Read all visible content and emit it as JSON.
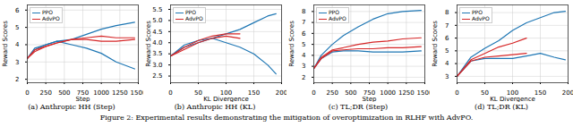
{
  "chart_data": [
    {
      "type": "line",
      "title": "(a) Anthropic HH (Step)",
      "xlabel": "Step",
      "ylabel": "Reward Scores",
      "x": [
        0,
        100,
        250,
        400,
        600,
        800,
        1000,
        1200,
        1450
      ],
      "series": [
        {
          "name": "PPO",
          "color": "#1f77b4",
          "values": [
            3.2,
            3.8,
            4.0,
            4.2,
            4.3,
            4.6,
            4.9,
            5.1,
            5.3
          ]
        },
        {
          "name": "PPO",
          "color": "#1f77b4",
          "values": [
            3.2,
            3.7,
            4.0,
            4.2,
            4.0,
            3.8,
            3.5,
            3.0,
            2.6
          ]
        },
        {
          "name": "AdvPO",
          "color": "#d62728",
          "values": [
            3.2,
            3.7,
            3.9,
            4.1,
            4.3,
            4.4,
            4.5,
            4.4,
            4.4
          ]
        },
        {
          "name": "AdvPO",
          "color": "#d62728",
          "values": [
            3.2,
            3.6,
            3.9,
            4.1,
            4.3,
            4.3,
            4.2,
            4.2,
            4.3
          ]
        }
      ],
      "xlim": [
        0,
        1500
      ],
      "xticks": [
        0,
        250,
        500,
        750,
        1000,
        1250,
        1500
      ],
      "ylim": [
        1.8,
        6.3
      ],
      "yticks": [
        2,
        3,
        4,
        5,
        6
      ],
      "grid": true,
      "legend": "upper left"
    },
    {
      "type": "line",
      "title": "(b) Anthropic HH (KL)",
      "xlabel": "KL Divergence",
      "ylabel": "Reward Scores",
      "x": [
        0,
        25,
        50,
        75,
        100,
        125,
        150,
        175,
        190
      ],
      "series": [
        {
          "name": "PPO",
          "color": "#1f77b4",
          "values": [
            3.4,
            3.8,
            4.0,
            4.2,
            4.4,
            4.6,
            4.9,
            5.2,
            5.3
          ]
        },
        {
          "name": "PPO",
          "color": "#1f77b4",
          "values": [
            3.4,
            3.9,
            4.1,
            4.2,
            4.0,
            3.8,
            3.5,
            3.0,
            2.6
          ]
        },
        {
          "name": "AdvPO",
          "color": "#d62728",
          "values": [
            3.4,
            3.8,
            4.1,
            4.3,
            4.4,
            4.4,
            null,
            null,
            null
          ]
        },
        {
          "name": "AdvPO",
          "color": "#d62728",
          "values": [
            3.4,
            3.7,
            4.0,
            4.2,
            4.3,
            4.2,
            null,
            null,
            null
          ]
        }
      ],
      "xlim": [
        0,
        200
      ],
      "xticks": [
        0,
        50,
        100,
        150,
        200
      ],
      "ylim": [
        2.2,
        5.7
      ],
      "yticks": [
        2.5,
        {
          "value": 3,
          "label": "3.0"
        },
        3.5,
        {
          "value": 4,
          "label": "4.0"
        },
        4.5,
        {
          "value": 5,
          "label": "5.0"
        },
        5.5
      ],
      "grid": true,
      "legend": "upper left"
    },
    {
      "type": "line",
      "title": "(c) TL;DR (Step)",
      "xlabel": "Step",
      "ylabel": "Reward Scores",
      "x": [
        0,
        100,
        250,
        400,
        600,
        800,
        1000,
        1200,
        1450
      ],
      "series": [
        {
          "name": "PPO",
          "color": "#1f77b4",
          "values": [
            2.8,
            4.0,
            5.0,
            5.8,
            6.6,
            7.3,
            7.8,
            8.0,
            8.1
          ]
        },
        {
          "name": "PPO",
          "color": "#1f77b4",
          "values": [
            2.8,
            3.7,
            4.3,
            4.4,
            4.4,
            4.3,
            4.3,
            4.3,
            4.4
          ]
        },
        {
          "name": "AdvPO",
          "color": "#d62728",
          "values": [
            2.8,
            3.8,
            4.5,
            4.7,
            5.0,
            5.2,
            5.3,
            5.5,
            5.6
          ]
        },
        {
          "name": "AdvPO",
          "color": "#d62728",
          "values": [
            2.8,
            3.7,
            4.4,
            4.5,
            4.6,
            4.6,
            4.7,
            4.7,
            4.8
          ]
        }
      ],
      "xlim": [
        0,
        1500
      ],
      "xticks": [
        0,
        250,
        500,
        750,
        1000,
        1250,
        1500
      ],
      "ylim": [
        1.5,
        8.6
      ],
      "yticks": [
        2,
        3,
        4,
        5,
        6,
        7,
        8
      ],
      "grid": true,
      "legend": "upper left"
    },
    {
      "type": "line",
      "title": "(d) TL;DR (KL)",
      "xlabel": "KL Divergence",
      "ylabel": "Reward Scores",
      "x": [
        0,
        25,
        50,
        75,
        100,
        125,
        150,
        175,
        195
      ],
      "series": [
        {
          "name": "PPO",
          "color": "#1f77b4",
          "values": [
            3.0,
            4.5,
            5.2,
            5.8,
            6.6,
            7.2,
            7.6,
            8.0,
            8.1
          ]
        },
        {
          "name": "PPO",
          "color": "#1f77b4",
          "values": [
            3.0,
            4.2,
            4.4,
            4.4,
            4.4,
            4.6,
            4.8,
            4.5,
            4.3
          ]
        },
        {
          "name": "AdvPO",
          "color": "#d62728",
          "values": [
            3.0,
            4.3,
            4.8,
            5.3,
            5.6,
            6.0,
            null,
            null,
            null
          ]
        },
        {
          "name": "AdvPO",
          "color": "#d62728",
          "values": [
            3.0,
            4.2,
            4.5,
            4.6,
            4.7,
            4.8,
            null,
            null,
            null
          ]
        }
      ],
      "xlim": [
        0,
        200
      ],
      "xticks": [
        0,
        50,
        100,
        150,
        200
      ],
      "ylim": [
        2.5,
        8.6
      ],
      "yticks": [
        3,
        4,
        5,
        6,
        7,
        8
      ],
      "grid": true,
      "legend": "upper left"
    }
  ],
  "figure_caption": "Figure 2: Experimental results demonstrating the mitigation of overoptimization in RLHF with AdvPO."
}
